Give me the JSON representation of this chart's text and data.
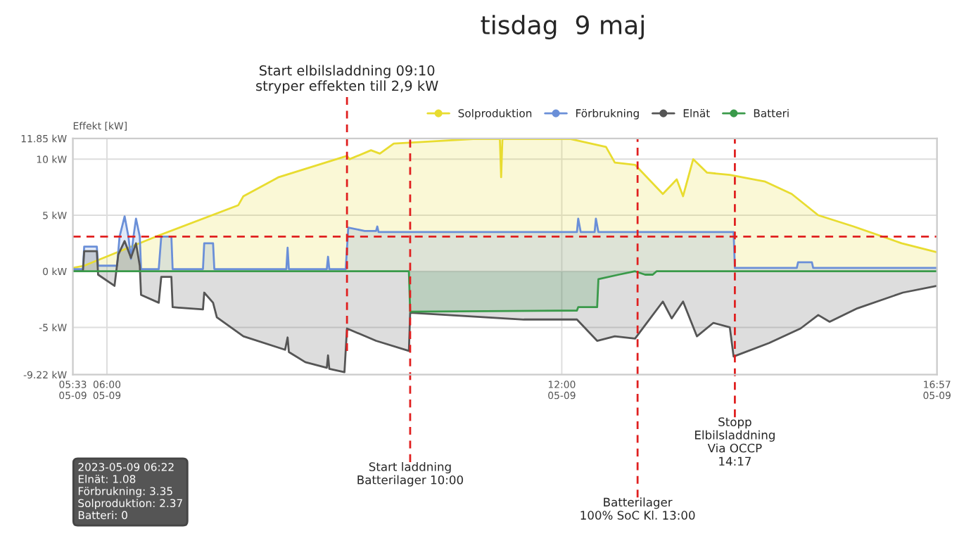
{
  "chart_data": {
    "type": "area",
    "title": "tisdag  9 maj",
    "ylabel": "Effekt [kW]",
    "xlim": [
      "2023-05-09T05:33",
      "2023-05-09T16:57"
    ],
    "xticks": [
      {
        "value": "2023-05-09T05:33",
        "label": "05:33\n05-09"
      },
      {
        "value": "2023-05-09T06:00",
        "label": "06:00\n05-09"
      },
      {
        "value": "2023-05-09T12:00",
        "label": "12:00\n05-09"
      },
      {
        "value": "2023-05-09T16:57",
        "label": "16:57\n05-09"
      }
    ],
    "ylim": [
      -9.22,
      11.85
    ],
    "yticks": [
      {
        "value": -9.22,
        "label": "-9.22 kW"
      },
      {
        "value": -5,
        "label": "-5 kW"
      },
      {
        "value": 0,
        "label": "0 kW"
      },
      {
        "value": 5,
        "label": "5 kW"
      },
      {
        "value": 10,
        "label": "10 kW"
      },
      {
        "value": 11.85,
        "label": "11.85 kW"
      }
    ],
    "grid": true,
    "legend": "top",
    "series": [
      {
        "name": "Solproduktion",
        "color": "#e8dc30",
        "x": [
          "2023-05-09T05:33",
          "2023-05-09T05:42",
          "2023-05-09T06:41",
          "2023-05-09T07:44",
          "2023-05-09T07:48",
          "2023-05-09T08:16",
          "2023-05-09T09:10",
          "2023-05-09T09:12",
          "2023-05-09T09:29",
          "2023-05-09T09:36",
          "2023-05-09T09:47",
          "2023-05-09T10:50",
          "2023-05-09T11:11",
          "2023-05-09T11:12",
          "2023-05-09T11:13",
          "2023-05-09T12:07",
          "2023-05-09T12:35",
          "2023-05-09T12:42",
          "2023-05-09T12:58",
          "2023-05-09T13:20",
          "2023-05-09T13:31",
          "2023-05-09T13:36",
          "2023-05-09T13:44",
          "2023-05-09T13:55",
          "2023-05-09T14:13",
          "2023-05-09T14:41",
          "2023-05-09T15:02",
          "2023-05-09T15:23",
          "2023-05-09T15:51",
          "2023-05-09T16:29",
          "2023-05-09T16:57"
        ],
        "values": [
          0.3,
          0.5,
          3.2,
          5.9,
          6.7,
          8.4,
          10.3,
          10.0,
          10.8,
          10.5,
          11.4,
          11.8,
          11.8,
          8.4,
          11.8,
          11.8,
          11.1,
          9.7,
          9.5,
          6.9,
          8.2,
          6.7,
          10.0,
          8.8,
          8.6,
          8.0,
          6.9,
          5.0,
          4.0,
          2.5,
          1.7
        ]
      },
      {
        "name": "Förbrukning",
        "color": "#6a8fd8",
        "x": [
          "2023-05-09T05:33",
          "2023-05-09T05:41",
          "2023-05-09T05:42",
          "2023-05-09T05:52",
          "2023-05-09T05:53",
          "2023-05-09T06:08",
          "2023-05-09T06:10",
          "2023-05-09T06:14",
          "2023-05-09T06:17",
          "2023-05-09T06:19",
          "2023-05-09T06:21",
          "2023-05-09T06:23",
          "2023-05-09T06:26",
          "2023-05-09T06:27",
          "2023-05-09T06:41",
          "2023-05-09T06:43",
          "2023-05-09T06:51",
          "2023-05-09T06:52",
          "2023-05-09T07:16",
          "2023-05-09T07:17",
          "2023-05-09T07:24",
          "2023-05-09T07:25",
          "2023-05-09T08:22",
          "2023-05-09T08:23",
          "2023-05-09T08:24",
          "2023-05-09T08:54",
          "2023-05-09T08:55",
          "2023-05-09T08:56",
          "2023-05-09T09:09",
          "2023-05-09T09:11",
          "2023-05-09T09:24",
          "2023-05-09T09:33",
          "2023-05-09T09:34",
          "2023-05-09T09:35",
          "2023-05-09T12:12",
          "2023-05-09T12:13",
          "2023-05-09T12:15",
          "2023-05-09T12:26",
          "2023-05-09T12:27",
          "2023-05-09T12:29",
          "2023-05-09T14:16",
          "2023-05-09T14:17",
          "2023-05-09T15:06",
          "2023-05-09T15:07",
          "2023-05-09T15:18",
          "2023-05-09T15:19",
          "2023-05-09T16:57"
        ],
        "values": [
          0.2,
          0.2,
          2.2,
          2.2,
          0.5,
          0.5,
          3.1,
          4.9,
          3.1,
          1.1,
          3.1,
          4.7,
          3.1,
          0.2,
          0.2,
          3.1,
          3.1,
          0.2,
          0.2,
          2.5,
          2.5,
          0.2,
          0.2,
          2.1,
          0.2,
          0.2,
          1.3,
          0.2,
          0.2,
          3.9,
          3.6,
          3.6,
          4.0,
          3.5,
          3.5,
          4.7,
          3.5,
          3.5,
          4.7,
          3.5,
          3.5,
          0.3,
          0.3,
          0.8,
          0.8,
          0.3,
          0.3
        ]
      },
      {
        "name": "Elnät",
        "color": "#555555",
        "x": [
          "2023-05-09T05:33",
          "2023-05-09T05:41",
          "2023-05-09T05:42",
          "2023-05-09T05:52",
          "2023-05-09T05:53",
          "2023-05-09T06:06",
          "2023-05-09T06:09",
          "2023-05-09T06:14",
          "2023-05-09T06:19",
          "2023-05-09T06:23",
          "2023-05-09T06:26",
          "2023-05-09T06:27",
          "2023-05-09T06:41",
          "2023-05-09T06:43",
          "2023-05-09T06:51",
          "2023-05-09T06:52",
          "2023-05-09T07:16",
          "2023-05-09T07:17",
          "2023-05-09T07:24",
          "2023-05-09T07:27",
          "2023-05-09T07:48",
          "2023-05-09T08:21",
          "2023-05-09T08:23",
          "2023-05-09T08:24",
          "2023-05-09T08:37",
          "2023-05-09T08:54",
          "2023-05-09T08:55",
          "2023-05-09T08:56",
          "2023-05-09T09:08",
          "2023-05-09T09:10",
          "2023-05-09T09:33",
          "2023-05-09T09:59",
          "2023-05-09T10:00",
          "2023-05-09T10:30",
          "2023-05-09T11:00",
          "2023-05-09T11:30",
          "2023-05-09T12:12",
          "2023-05-09T12:28",
          "2023-05-09T12:42",
          "2023-05-09T12:58",
          "2023-05-09T13:10",
          "2023-05-09T13:20",
          "2023-05-09T13:27",
          "2023-05-09T13:36",
          "2023-05-09T13:47",
          "2023-05-09T14:00",
          "2023-05-09T14:13",
          "2023-05-09T14:16",
          "2023-05-09T14:44",
          "2023-05-09T15:09",
          "2023-05-09T15:23",
          "2023-05-09T15:32",
          "2023-05-09T15:54",
          "2023-05-09T16:30",
          "2023-05-09T16:57"
        ],
        "values": [
          0,
          0,
          1.8,
          1.8,
          -0.3,
          -1.3,
          1.5,
          2.7,
          1.2,
          2.5,
          0.5,
          -2.1,
          -2.8,
          -0.5,
          -0.5,
          -3.2,
          -3.4,
          -1.9,
          -2.8,
          -4.1,
          -5.8,
          -7.0,
          -5.9,
          -7.2,
          -8.1,
          -8.6,
          -7.5,
          -8.7,
          -9.0,
          -5.1,
          -6.2,
          -7.1,
          -3.7,
          -3.9,
          -4.1,
          -4.3,
          -4.3,
          -6.2,
          -5.8,
          -6.0,
          -4.2,
          -2.7,
          -4.2,
          -2.7,
          -5.8,
          -4.6,
          -5.0,
          -7.6,
          -6.4,
          -5.1,
          -3.9,
          -4.5,
          -3.3,
          -1.9,
          -1.3
        ]
      },
      {
        "name": "Batteri",
        "color": "#3a9a4a",
        "x": [
          "2023-05-09T05:33",
          "2023-05-09T09:59",
          "2023-05-09T10:00",
          "2023-05-09T12:12",
          "2023-05-09T12:13",
          "2023-05-09T12:28",
          "2023-05-09T12:29",
          "2023-05-09T12:45",
          "2023-05-09T12:58",
          "2023-05-09T13:06",
          "2023-05-09T13:12",
          "2023-05-09T13:15",
          "2023-05-09T16:57"
        ],
        "values": [
          0,
          0,
          -3.6,
          -3.5,
          -3.2,
          -3.2,
          -0.7,
          -0.3,
          0,
          -0.3,
          -0.3,
          0,
          0
        ]
      }
    ],
    "ref_lines": [
      {
        "axis": "x",
        "value": "2023-05-09T09:10",
        "label": "Start elbilsladdning 09:10\nstryper effekten till 2,9 kW",
        "color": "#e02020",
        "line_style": "dashed"
      },
      {
        "axis": "x",
        "value": "2023-05-09T10:00",
        "label": "Start laddning\nBatterilager 10:00",
        "color": "#e02020",
        "line_style": "dashed"
      },
      {
        "axis": "x",
        "value": "2023-05-09T13:00",
        "label": "Batterilager\n100% SoC Kl. 13:00",
        "color": "#e02020",
        "line_style": "dashed"
      },
      {
        "axis": "x",
        "value": "2023-05-09T14:17",
        "label": "Stopp\nElbilsladdning\nVia OCCP\n14:17",
        "color": "#e02020",
        "line_style": "dashed"
      },
      {
        "axis": "y",
        "value": 3.1,
        "label": null,
        "color": "#e02020",
        "line_style": "dashed"
      }
    ],
    "annotations": [
      "2023-05-09 06:22\nElnät: 1.08\nFörbrukning: 3.35\nSolproduktion: 2.37\nBatteri: 0"
    ]
  }
}
